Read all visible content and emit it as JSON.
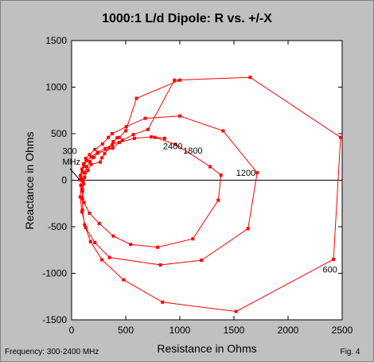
{
  "chart_data": {
    "type": "scatter",
    "title": "1000:1 L/d Dipole: R vs. +/-X",
    "xlabel": "Resistance in Ohms",
    "ylabel": "Reactance in Ohms",
    "xlim": [
      0,
      2500
    ],
    "ylim": [
      -1500,
      1500
    ],
    "x_ticks": [
      "0",
      "500",
      "1000",
      "1500",
      "2000",
      "2500"
    ],
    "y_ticks": [
      "1500",
      "1000",
      "500",
      "0",
      "-500",
      "-1000",
      "-1500"
    ],
    "x_tick_values": [
      0,
      500,
      1000,
      1500,
      2000,
      2500
    ],
    "y_tick_values": [
      1500,
      1000,
      500,
      0,
      -500,
      -1000,
      -1500
    ],
    "grid": false,
    "zero_line": true,
    "marker_color": "#ff0000",
    "line_color": "#ff0000",
    "series": [
      {
        "points": [
          [
            75,
            5
          ],
          [
            80,
            50
          ],
          [
            95,
            120
          ],
          [
            110,
            175
          ],
          [
            130,
            235
          ],
          [
            165,
            275
          ],
          [
            215,
            330
          ],
          [
            285,
            390
          ],
          [
            340,
            460
          ],
          [
            375,
            500
          ],
          [
            505,
            575
          ],
          [
            680,
            665
          ],
          [
            1000,
            690
          ],
          [
            1400,
            530
          ],
          [
            1715,
            80
          ],
          [
            1630,
            -520
          ],
          [
            1200,
            -860
          ],
          [
            820,
            -910
          ],
          [
            350,
            -830
          ],
          [
            215,
            -670
          ],
          [
            130,
            -510
          ],
          [
            95,
            -340
          ],
          [
            80,
            -180
          ],
          [
            85,
            -55
          ],
          [
            90,
            15
          ],
          [
            100,
            90
          ],
          [
            115,
            150
          ],
          [
            140,
            210
          ],
          [
            180,
            250
          ],
          [
            240,
            300
          ],
          [
            310,
            340
          ],
          [
            375,
            380
          ],
          [
            470,
            430
          ],
          [
            570,
            490
          ],
          [
            705,
            545
          ],
          [
            950,
            1075
          ],
          [
            1650,
            1105
          ],
          [
            2485,
            460
          ],
          [
            2420,
            -850
          ],
          [
            1520,
            -1410
          ],
          [
            840,
            -1310
          ],
          [
            480,
            -1070
          ],
          [
            280,
            -855
          ],
          [
            175,
            -660
          ],
          [
            120,
            -480
          ],
          [
            100,
            -320
          ],
          [
            100,
            -200
          ],
          [
            100,
            -95
          ],
          [
            105,
            -5
          ],
          [
            120,
            80
          ],
          [
            140,
            145
          ],
          [
            170,
            200
          ],
          [
            205,
            245
          ],
          [
            240,
            290
          ],
          [
            380,
            345
          ],
          [
            440,
            405
          ],
          [
            580,
            450
          ],
          [
            735,
            465
          ],
          [
            860,
            450
          ],
          [
            770,
            460
          ],
          [
            960,
            385
          ],
          [
            1280,
            145
          ],
          [
            1380,
            55
          ],
          [
            1355,
            -215
          ],
          [
            1120,
            -630
          ],
          [
            795,
            -720
          ],
          [
            545,
            -690
          ],
          [
            385,
            -600
          ],
          [
            255,
            -465
          ],
          [
            165,
            -355
          ],
          [
            115,
            -240
          ],
          [
            100,
            -120
          ],
          [
            110,
            -40
          ],
          [
            120,
            30
          ],
          [
            150,
            105
          ],
          [
            180,
            170
          ],
          [
            265,
            195
          ],
          [
            280,
            240
          ],
          [
            305,
            285
          ],
          [
            345,
            345
          ],
          [
            385,
            415
          ],
          [
            420,
            455
          ],
          [
            440,
            460
          ],
          [
            500,
            530
          ],
          [
            600,
            880
          ],
          [
            1000,
            1075
          ]
        ]
      }
    ],
    "annotations": [
      {
        "text": "2400",
        "x": 845,
        "y": 335
      },
      {
        "text": "1800",
        "x": 1030,
        "y": 285
      },
      {
        "text": "1200",
        "x": 1520,
        "y": 45
      },
      {
        "text": "600",
        "x": 2320,
        "y": -990
      },
      {
        "text": "300",
        "x": -85,
        "y": 280
      },
      {
        "text": "MHz",
        "x": -85,
        "y": 165
      }
    ]
  },
  "footer": {
    "frequency_note": "Frequency: 300-2400 MHz",
    "figure_label": "Fig. 4"
  }
}
